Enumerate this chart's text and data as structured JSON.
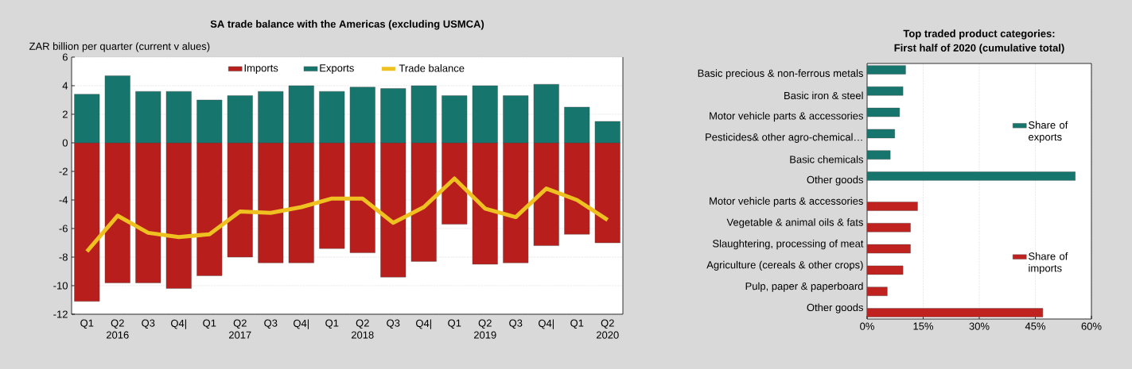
{
  "chart_data": [
    {
      "type": "bar",
      "title": "SA trade balance with the Americas (excluding USMCA)",
      "ylabel": "ZAR billion per quarter (current v alues)",
      "categories": [
        "Q1",
        "Q2 2016",
        "Q3",
        "Q4|",
        "Q1",
        "Q2 2017",
        "Q3",
        "Q4|",
        "Q1",
        "Q2 2018",
        "Q3",
        "Q4|",
        "Q1",
        "Q2 2019",
        "Q3",
        "Q4|",
        "Q1",
        "Q2 2020"
      ],
      "series": [
        {
          "name": "Imports",
          "color": "#b81f1c",
          "values": [
            -11.1,
            -9.8,
            -9.8,
            -10.2,
            -9.3,
            -8.0,
            -8.4,
            -8.4,
            -7.4,
            -7.7,
            -9.4,
            -8.3,
            -5.7,
            -8.5,
            -8.4,
            -7.2,
            -6.4,
            -7.0
          ]
        },
        {
          "name": "Exports",
          "color": "#16766d",
          "values": [
            3.4,
            4.7,
            3.6,
            3.6,
            3.0,
            3.3,
            3.6,
            4.0,
            3.6,
            3.9,
            3.8,
            4.0,
            3.3,
            4.0,
            3.3,
            4.1,
            2.5,
            1.5
          ]
        },
        {
          "name": "Trade balance",
          "type": "line",
          "color": "#eec121",
          "values": [
            -7.6,
            -5.1,
            -6.3,
            -6.6,
            -6.4,
            -4.8,
            -4.9,
            -4.5,
            -3.9,
            -3.9,
            -5.6,
            -4.5,
            -2.5,
            -4.6,
            -5.2,
            -3.2,
            -4.0,
            -5.4
          ]
        }
      ],
      "stacked": true,
      "ylim": [
        -12,
        6
      ],
      "yticks": [
        -12,
        -10,
        -8,
        -6,
        -4,
        -2,
        0,
        2,
        4,
        6
      ],
      "grid": "y",
      "legend": "top"
    },
    {
      "type": "bar",
      "orientation": "horizontal",
      "title": "Top traded product categories:",
      "subtitle": "First half of 2020 (cumulative total)",
      "categories": [
        "Basic precious & non-ferrous metals",
        "Basic iron & steel",
        "Motor vehicle parts & accessories",
        "Pesticides& other agro-chemical…",
        "Basic chemicals",
        "Other goods",
        "Motor vehicle parts & accessories",
        "Vegetable & animal oils & fats",
        "Slaughtering, processing of meat",
        "Agriculture (cereals & other crops)",
        "Pulp, paper & paperboard",
        "Other goods"
      ],
      "series": [
        {
          "name": "Share of exports",
          "color": "#16766d",
          "values": [
            10.3,
            9.6,
            8.7,
            7.4,
            6.2,
            55.7,
            null,
            null,
            null,
            null,
            null,
            null
          ]
        },
        {
          "name": "Share of imports",
          "color": "#c0221f",
          "values": [
            null,
            null,
            null,
            null,
            null,
            null,
            13.5,
            11.6,
            11.6,
            9.6,
            5.4,
            47.0
          ]
        }
      ],
      "xlim": [
        0,
        60
      ],
      "xticks": [
        {
          "value": 0,
          "label": "0%"
        },
        {
          "value": 15,
          "label": "15%"
        },
        {
          "value": 30,
          "label": "30%"
        },
        {
          "value": 45,
          "label": "45%"
        },
        {
          "value": 60,
          "label": "60%"
        }
      ],
      "grid": "x",
      "legend": "right"
    }
  ]
}
